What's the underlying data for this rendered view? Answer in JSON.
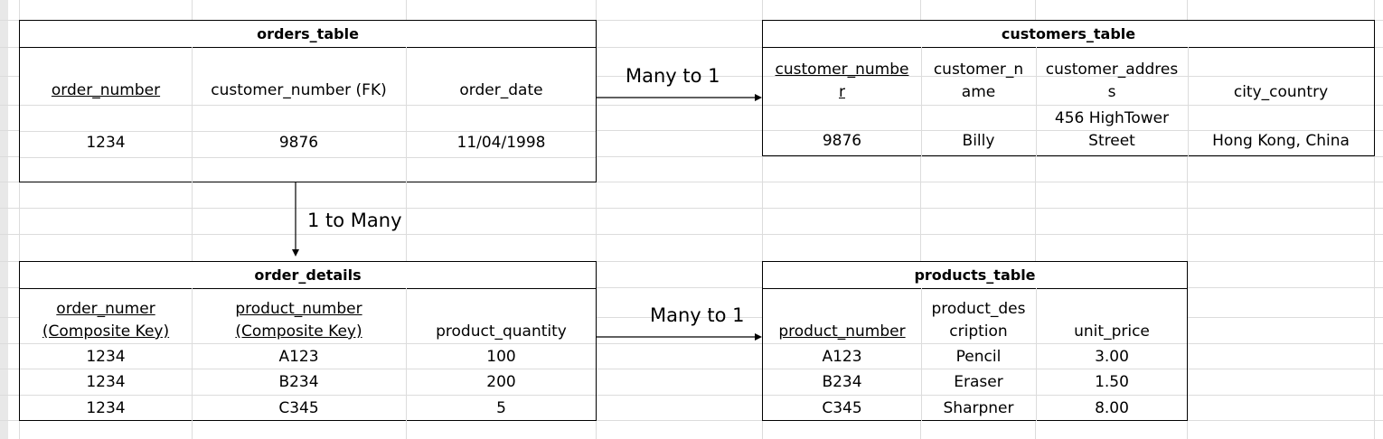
{
  "orders_table": {
    "title": "orders_table",
    "headers": [
      "order_number",
      "customer_number (FK)",
      "order_date"
    ],
    "row": [
      "1234",
      "9876",
      "11/04/1998"
    ]
  },
  "customers_table": {
    "title": "customers_table",
    "headers": [
      [
        "customer_numbe",
        "r"
      ],
      [
        "customer_n",
        "ame"
      ],
      [
        "customer_addres",
        "s"
      ],
      [
        "city_country"
      ]
    ],
    "row": [
      [
        "9876"
      ],
      [
        "Billy"
      ],
      [
        "456 HighTower",
        "Street"
      ],
      [
        "Hong Kong, China"
      ]
    ]
  },
  "order_details": {
    "title": "order_details",
    "headers": [
      [
        "order_numer",
        "(Composite Key)"
      ],
      [
        "product_number",
        "(Composite Key)"
      ],
      [
        "product_quantity"
      ]
    ],
    "rows": [
      [
        "1234",
        "A123",
        "100"
      ],
      [
        "1234",
        "B234",
        "200"
      ],
      [
        "1234",
        "C345",
        "5"
      ]
    ]
  },
  "products_table": {
    "title": "products_table",
    "headers": [
      [
        "product_number"
      ],
      [
        "product_des",
        "cription"
      ],
      [
        "unit_price"
      ]
    ],
    "rows": [
      [
        "A123",
        "Pencil",
        "3.00"
      ],
      [
        "B234",
        "Eraser",
        "1.50"
      ],
      [
        "C345",
        "Sharpner",
        "8.00"
      ]
    ]
  },
  "relations": {
    "orders_to_customers": "Many to 1",
    "orders_to_details": "1 to Many",
    "details_to_products": "Many to 1"
  }
}
